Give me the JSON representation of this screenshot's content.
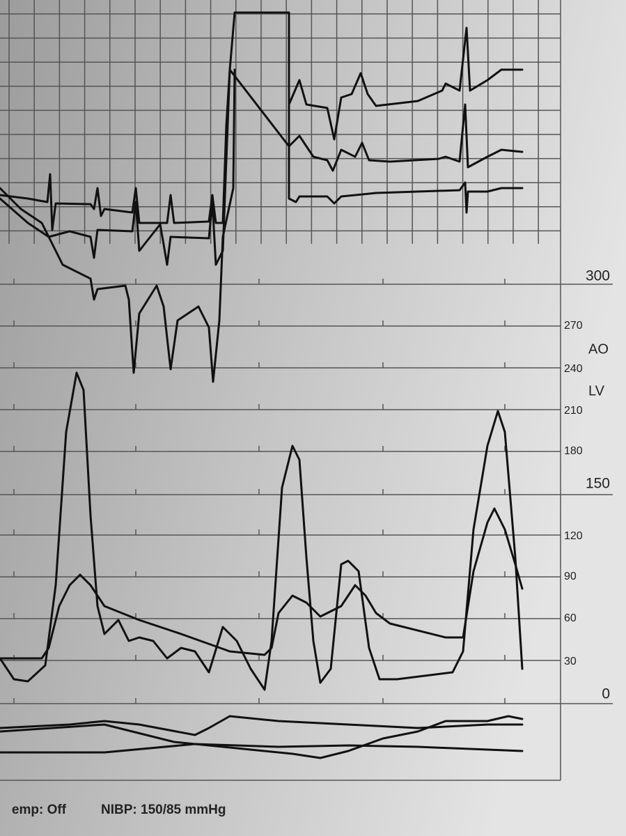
{
  "scale": {
    "labels": [
      "300",
      "270",
      "240",
      "210",
      "180",
      "150",
      "120",
      "90",
      "60",
      "30",
      "0"
    ]
  },
  "channels": [
    "AO",
    "LV"
  ],
  "footer": [
    "emp: Off",
    "NIBP: 150/85 mmHg"
  ]
}
